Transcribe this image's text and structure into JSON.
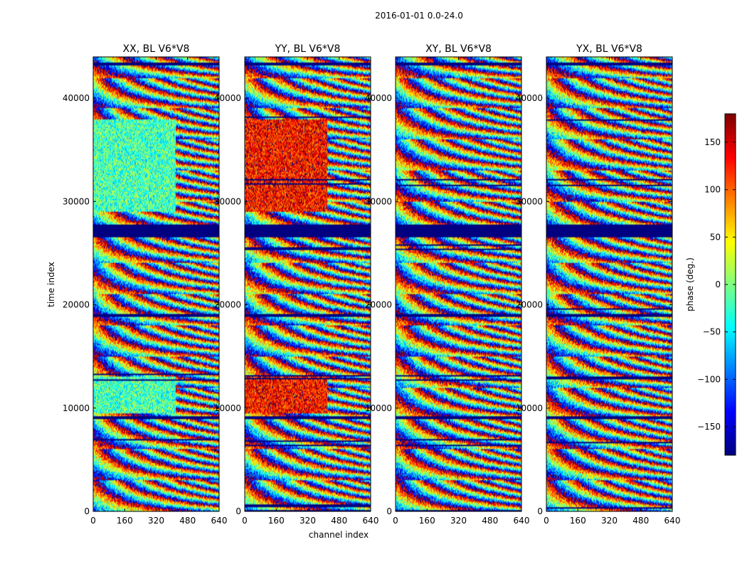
{
  "figure": {
    "suptitle": "2016-01-01 0.0-24.0"
  },
  "chart_data": {
    "type": "heatmap",
    "title": "2016-01-01 0.0-24.0",
    "xlabel": "channel index",
    "ylabel": "time index",
    "xlim": [
      0,
      640
    ],
    "ylim": [
      0,
      44000
    ],
    "xticks": [
      0,
      160,
      320,
      480,
      640
    ],
    "yticks": [
      0,
      10000,
      20000,
      30000,
      40000
    ],
    "panels": [
      {
        "title": "XX, BL V6*V8",
        "pol": "XX",
        "coherent": true,
        "meanPhase": -20
      },
      {
        "title": "YY, BL V6*V8",
        "pol": "YY",
        "coherent": true,
        "meanPhase": 130
      },
      {
        "title": "XY, BL V6*V8",
        "pol": "XY",
        "coherent": false,
        "meanPhase": 0
      },
      {
        "title": "YX, BL V6*V8",
        "pol": "YX",
        "coherent": false,
        "meanPhase": 0
      }
    ],
    "colorbar": {
      "label": "phase (deg.)",
      "range": [
        -180,
        180
      ],
      "ticks": [
        150,
        100,
        50,
        0,
        -50,
        -100,
        -150
      ],
      "colormap": "jet"
    },
    "flagged_time_ranges": [
      [
        26500,
        27800
      ],
      [
        8900,
        9200
      ],
      [
        15200,
        15300
      ],
      [
        18900,
        19100
      ],
      [
        43200,
        43400
      ]
    ],
    "axis_color": "#000000"
  }
}
